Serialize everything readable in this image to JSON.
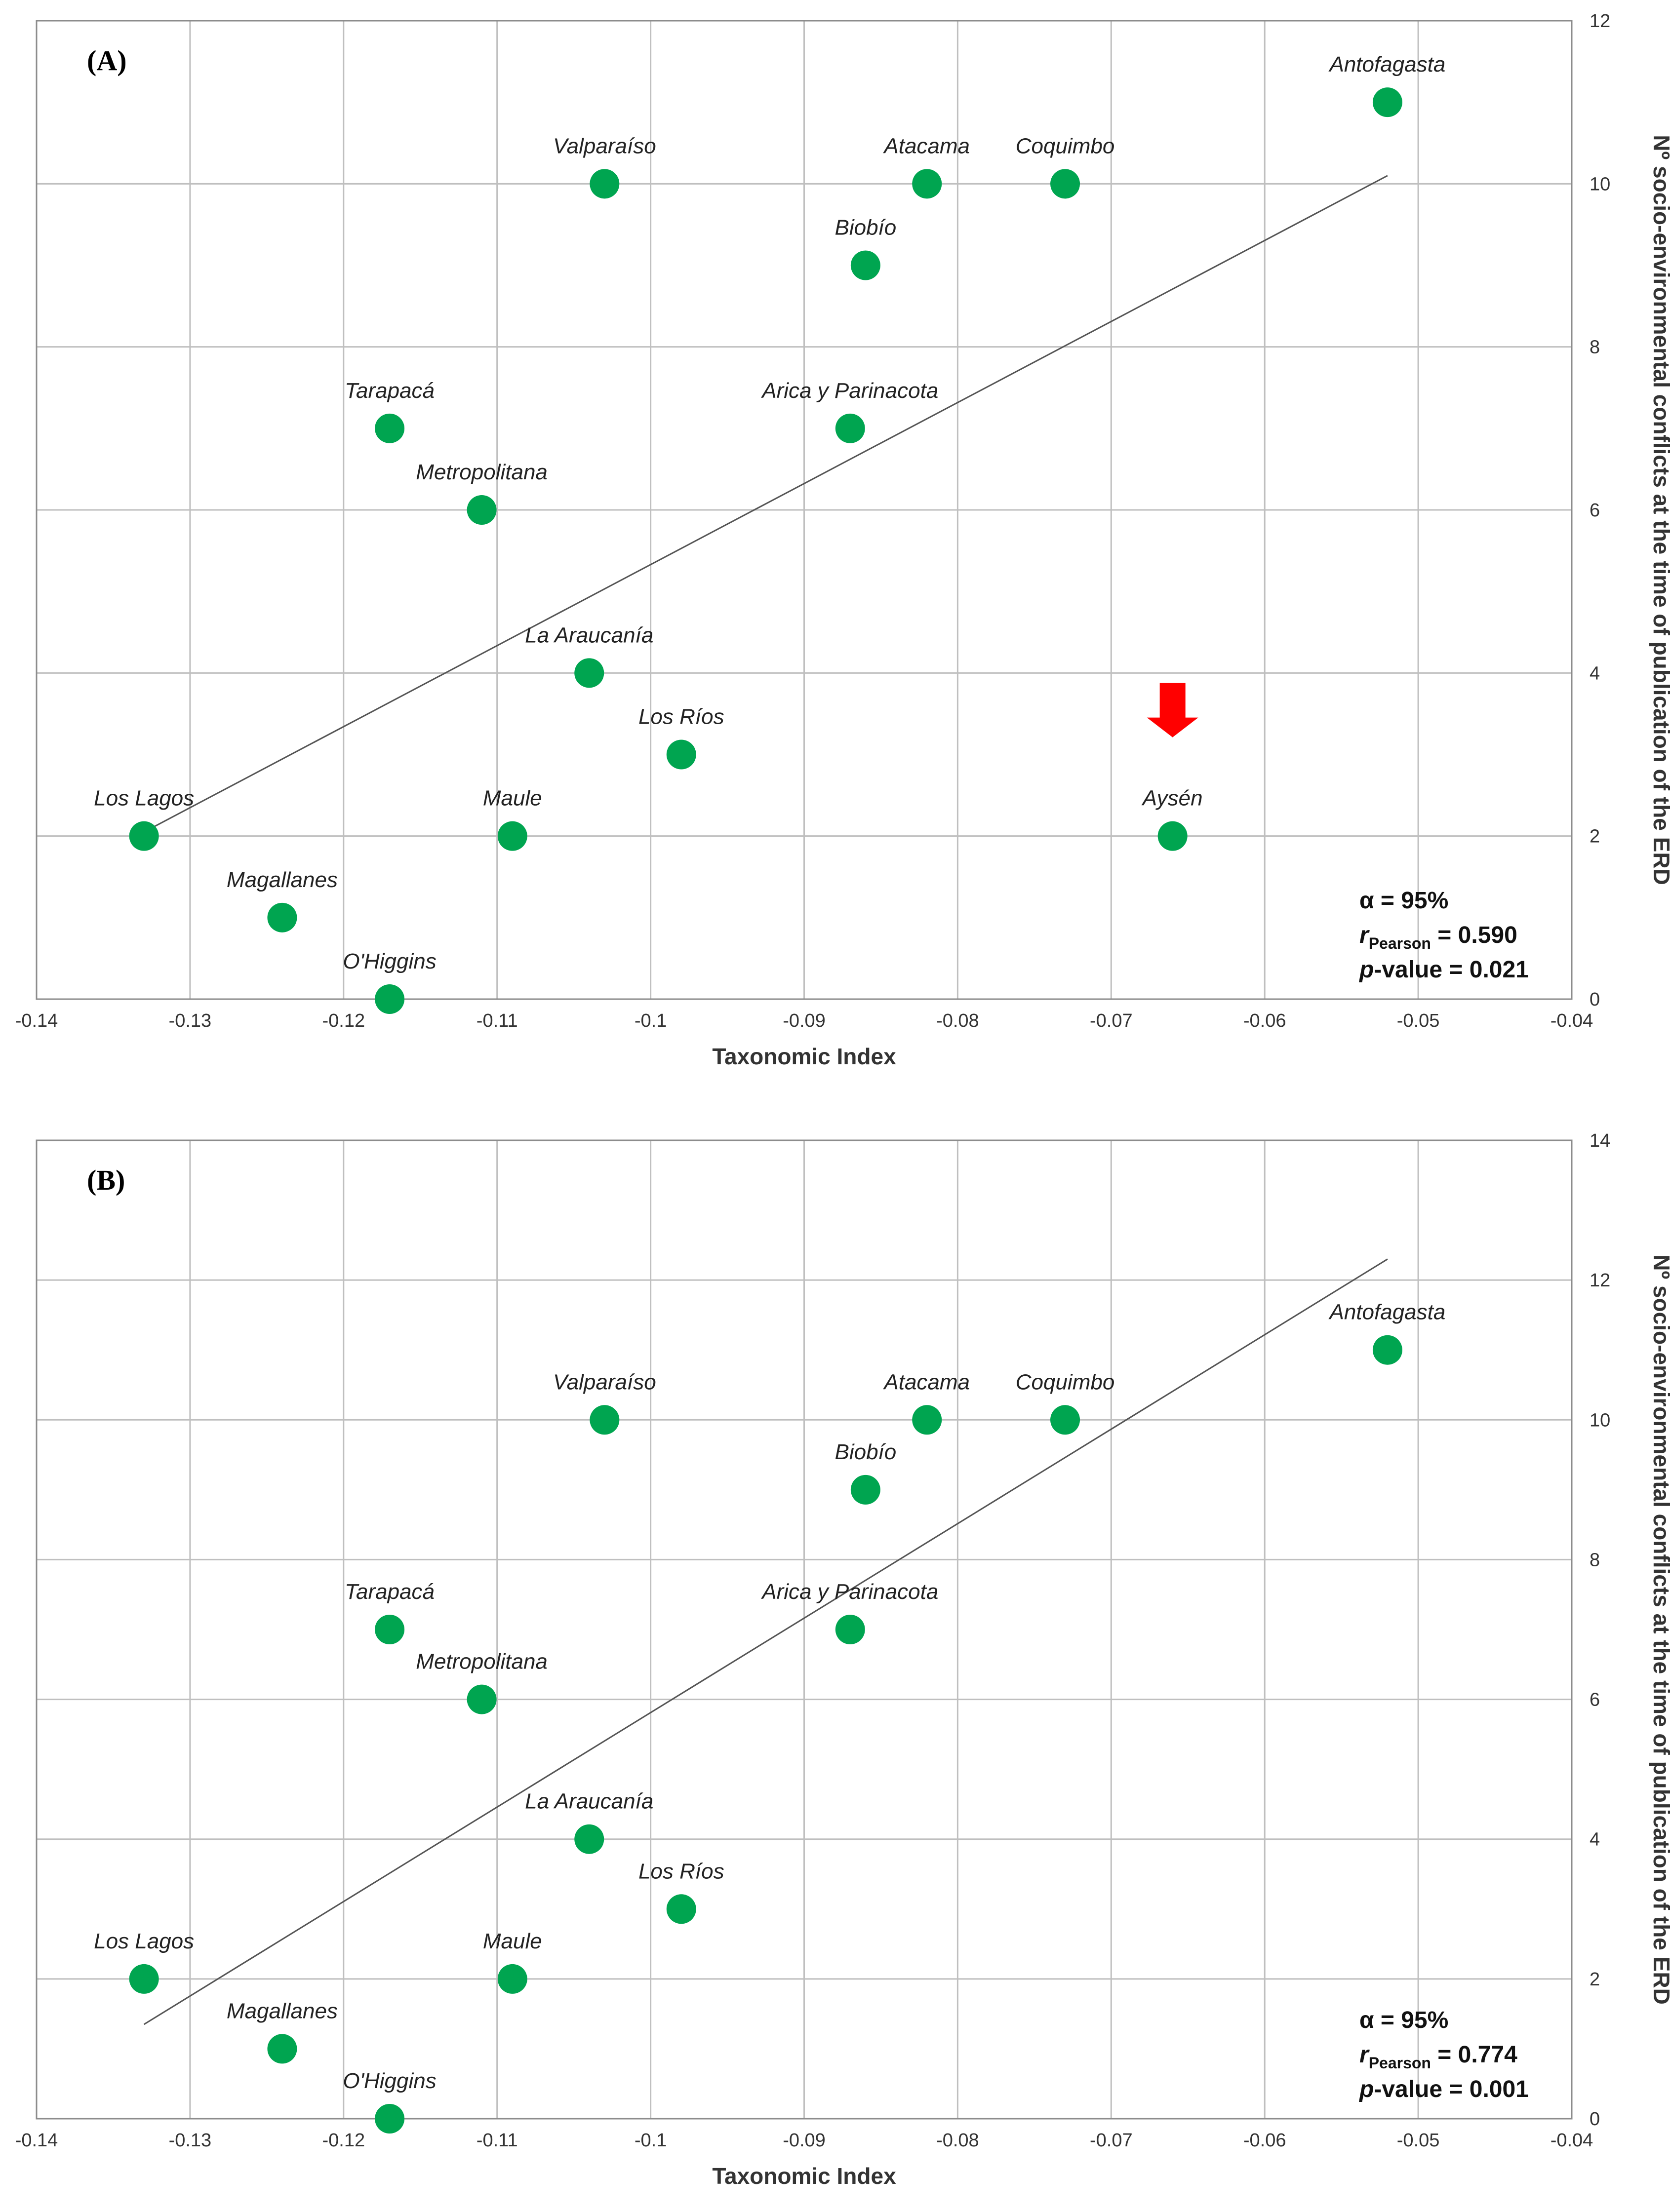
{
  "chart_data": [
    {
      "type": "scatter",
      "panel_label": "(A)",
      "xlabel": "Taxonomic Index",
      "ylabel": "Nº socio-environmental  conflicts at the time of publication of the ERD",
      "xlim": [
        -0.14,
        -0.04
      ],
      "ylim": [
        0,
        12
      ],
      "x_ticks": [
        -0.14,
        -0.13,
        -0.12,
        -0.11,
        -0.1,
        -0.09,
        -0.08,
        -0.07,
        -0.06,
        -0.05,
        -0.04
      ],
      "x_tick_labels": [
        "-0.14",
        "-0.13",
        "-0.12",
        "-0.11",
        "-0.1",
        "-0.09",
        "-0.08",
        "-0.07",
        "-0.06",
        "-0.05",
        "-0.04"
      ],
      "y_ticks": [
        0,
        2,
        4,
        6,
        8,
        10,
        12
      ],
      "y_tick_labels": [
        "0",
        "2",
        "4",
        "6",
        "8",
        "10",
        "12"
      ],
      "grid": true,
      "marker_color": "#00a550",
      "points": [
        {
          "name": "Antofagasta",
          "x": -0.052,
          "y": 11
        },
        {
          "name": "Valparaíso",
          "x": -0.103,
          "y": 10
        },
        {
          "name": "Atacama",
          "x": -0.082,
          "y": 10
        },
        {
          "name": "Coquimbo",
          "x": -0.073,
          "y": 10
        },
        {
          "name": "Biobío",
          "x": -0.086,
          "y": 9
        },
        {
          "name": "Tarapacá",
          "x": -0.117,
          "y": 7
        },
        {
          "name": "Arica y Parinacota",
          "x": -0.087,
          "y": 7
        },
        {
          "name": "Metropolitana",
          "x": -0.111,
          "y": 6
        },
        {
          "name": "La Araucanía",
          "x": -0.104,
          "y": 4
        },
        {
          "name": "Los Ríos",
          "x": -0.098,
          "y": 3
        },
        {
          "name": "Los Lagos",
          "x": -0.133,
          "y": 2
        },
        {
          "name": "Maule",
          "x": -0.109,
          "y": 2
        },
        {
          "name": "Aysén",
          "x": -0.066,
          "y": 2
        },
        {
          "name": "Magallanes",
          "x": -0.124,
          "y": 1
        },
        {
          "name": "O'Higgins",
          "x": -0.117,
          "y": 0
        }
      ],
      "trendline": {
        "x": [
          -0.133,
          -0.052
        ],
        "y": [
          2.05,
          10.1
        ]
      },
      "highlight": {
        "name": "Aysén",
        "marker": "red-down-arrow",
        "color": "#ff0000"
      },
      "stats": {
        "alpha": "α = 95%",
        "r_prefix": "r",
        "r_sub": "Pearson",
        "r_value": " = 0.590",
        "p_prefix": "p",
        "p_value": "-value = 0.021"
      }
    },
    {
      "type": "scatter",
      "panel_label": "(B)",
      "xlabel": "Taxonomic Index",
      "ylabel": "Nº socio-environmental  conflicts at the time of publication of the ERD",
      "xlim": [
        -0.14,
        -0.04
      ],
      "ylim": [
        0,
        14
      ],
      "x_ticks": [
        -0.14,
        -0.13,
        -0.12,
        -0.11,
        -0.1,
        -0.09,
        -0.08,
        -0.07,
        -0.06,
        -0.05,
        -0.04
      ],
      "x_tick_labels": [
        "-0.14",
        "-0.13",
        "-0.12",
        "-0.11",
        "-0.1",
        "-0.09",
        "-0.08",
        "-0.07",
        "-0.06",
        "-0.05",
        "-0.04"
      ],
      "y_ticks": [
        0,
        2,
        4,
        6,
        8,
        10,
        12,
        14
      ],
      "y_tick_labels": [
        "0",
        "2",
        "4",
        "6",
        "8",
        "10",
        "12",
        "14"
      ],
      "grid": true,
      "marker_color": "#00a550",
      "points": [
        {
          "name": "Antofagasta",
          "x": -0.052,
          "y": 11
        },
        {
          "name": "Valparaíso",
          "x": -0.103,
          "y": 10
        },
        {
          "name": "Atacama",
          "x": -0.082,
          "y": 10
        },
        {
          "name": "Coquimbo",
          "x": -0.073,
          "y": 10
        },
        {
          "name": "Biobío",
          "x": -0.086,
          "y": 9
        },
        {
          "name": "Tarapacá",
          "x": -0.117,
          "y": 7
        },
        {
          "name": "Arica y Parinacota",
          "x": -0.087,
          "y": 7
        },
        {
          "name": "Metropolitana",
          "x": -0.111,
          "y": 6
        },
        {
          "name": "La Araucanía",
          "x": -0.104,
          "y": 4
        },
        {
          "name": "Los Ríos",
          "x": -0.098,
          "y": 3
        },
        {
          "name": "Los Lagos",
          "x": -0.133,
          "y": 2
        },
        {
          "name": "Maule",
          "x": -0.109,
          "y": 2
        },
        {
          "name": "Magallanes",
          "x": -0.124,
          "y": 1
        },
        {
          "name": "O'Higgins",
          "x": -0.117,
          "y": 0
        }
      ],
      "trendline": {
        "x": [
          -0.133,
          -0.052
        ],
        "y": [
          1.35,
          12.3
        ]
      },
      "stats": {
        "alpha": "α = 95%",
        "r_prefix": "r",
        "r_sub": "Pearson",
        "r_value": " = 0.774",
        "p_prefix": "p",
        "p_value": "-value = 0.001"
      }
    }
  ]
}
